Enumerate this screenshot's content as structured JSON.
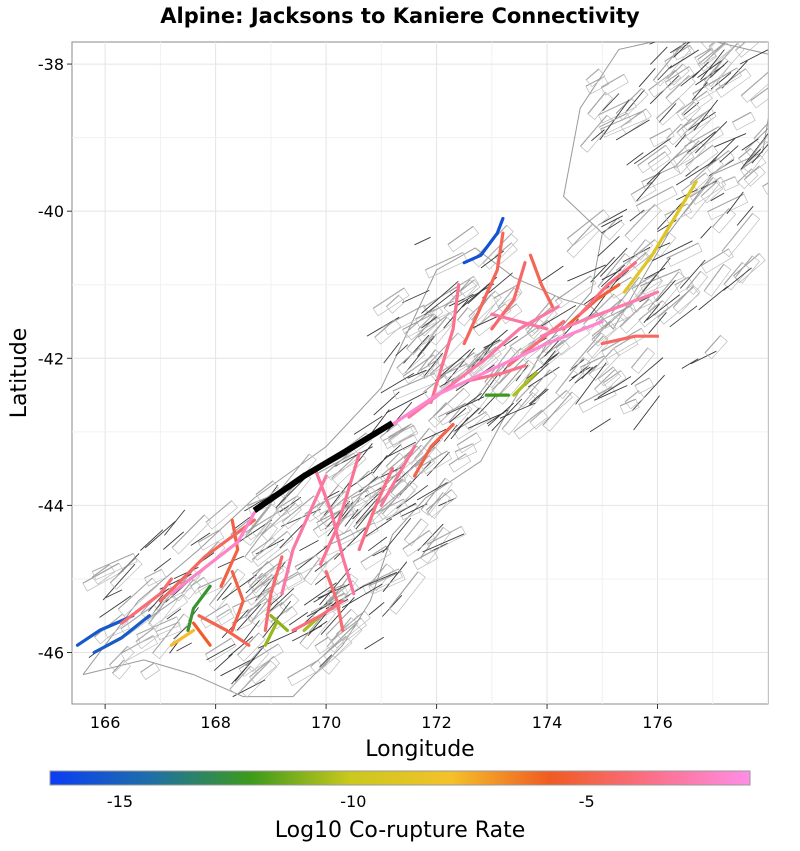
{
  "chart_data": {
    "type": "map",
    "title": "Alpine: Jacksons to Kaniere Connectivity",
    "xlabel": "Longitude",
    "ylabel": "Latitude",
    "xlim": [
      165.4,
      178.0
    ],
    "ylim": [
      -46.7,
      -37.7
    ],
    "xticks": [
      166,
      168,
      170,
      172,
      174,
      176
    ],
    "yticks": [
      -38,
      -40,
      -42,
      -44,
      -46
    ],
    "grid": true,
    "colorbar": {
      "label": "Log10 Co-rupture Rate",
      "range": [
        -16.5,
        -1.5
      ],
      "ticks": [
        -15,
        -10,
        -5
      ],
      "colors": [
        "#0b3df5",
        "#1f6fa8",
        "#3c9a1c",
        "#c9c81d",
        "#f5c12a",
        "#ef5b22",
        "#fb6f88",
        "#ff8ee6"
      ]
    },
    "source_section": {
      "name": "Alpine: Jacksons to Kaniere",
      "color": "#000000",
      "path": [
        [
          168.7,
          -44.07
        ],
        [
          169.6,
          -43.6
        ],
        [
          170.5,
          -43.2
        ],
        [
          171.2,
          -42.88
        ]
      ]
    },
    "ruptured_sections": [
      {
        "rate": -2.2,
        "path": [
          [
            167.2,
            -45.2
          ],
          [
            167.8,
            -44.85
          ],
          [
            168.4,
            -44.5
          ],
          [
            168.7,
            -44.1
          ]
        ]
      },
      {
        "rate": -2.0,
        "path": [
          [
            171.2,
            -42.9
          ],
          [
            172.0,
            -42.5
          ],
          [
            173.0,
            -42.15
          ],
          [
            174.0,
            -41.8
          ],
          [
            175.0,
            -41.5
          ]
        ]
      },
      {
        "rate": -4.0,
        "path": [
          [
            166.3,
            -45.6
          ],
          [
            167.0,
            -45.2
          ],
          [
            167.2,
            -45.0
          ]
        ]
      },
      {
        "rate": -4.5,
        "path": [
          [
            167.0,
            -45.3
          ],
          [
            167.8,
            -44.7
          ],
          [
            168.7,
            -44.2
          ]
        ]
      },
      {
        "rate": -3.2,
        "path": [
          [
            169.8,
            -43.5
          ],
          [
            170.1,
            -44.1
          ],
          [
            170.3,
            -44.7
          ],
          [
            170.5,
            -45.2
          ]
        ]
      },
      {
        "rate": -3.0,
        "path": [
          [
            170.0,
            -43.6
          ],
          [
            169.7,
            -44.1
          ],
          [
            169.4,
            -44.6
          ],
          [
            169.2,
            -45.2
          ]
        ]
      },
      {
        "rate": -3.4,
        "path": [
          [
            170.6,
            -43.3
          ],
          [
            170.4,
            -43.8
          ],
          [
            170.2,
            -44.3
          ],
          [
            169.9,
            -44.8
          ]
        ]
      },
      {
        "rate": -4.2,
        "path": [
          [
            169.2,
            -44.7
          ],
          [
            169.0,
            -45.2
          ],
          [
            168.9,
            -45.7
          ]
        ]
      },
      {
        "rate": -5.0,
        "path": [
          [
            168.3,
            -44.9
          ],
          [
            168.5,
            -45.3
          ],
          [
            168.3,
            -45.7
          ]
        ]
      },
      {
        "rate": -4.8,
        "path": [
          [
            167.7,
            -45.5
          ],
          [
            168.2,
            -45.7
          ],
          [
            168.6,
            -45.9
          ]
        ]
      },
      {
        "rate": -3.0,
        "path": [
          [
            171.5,
            -42.8
          ],
          [
            172.2,
            -42.4
          ],
          [
            172.9,
            -42.0
          ],
          [
            173.5,
            -41.6
          ],
          [
            174.2,
            -41.3
          ]
        ]
      },
      {
        "rate": -3.5,
        "path": [
          [
            171.9,
            -42.6
          ],
          [
            172.1,
            -42.1
          ],
          [
            172.3,
            -41.6
          ],
          [
            172.4,
            -41.0
          ]
        ]
      },
      {
        "rate": -4.6,
        "path": [
          [
            172.5,
            -41.8
          ],
          [
            172.8,
            -41.3
          ],
          [
            173.1,
            -40.8
          ],
          [
            173.2,
            -40.3
          ]
        ]
      },
      {
        "rate": -4.3,
        "path": [
          [
            173.0,
            -41.6
          ],
          [
            173.4,
            -41.2
          ],
          [
            173.6,
            -40.7
          ]
        ]
      },
      {
        "rate": -4.0,
        "path": [
          [
            173.3,
            -42.1
          ],
          [
            173.8,
            -41.8
          ],
          [
            174.3,
            -41.5
          ]
        ]
      },
      {
        "rate": -2.8,
        "path": [
          [
            173.9,
            -41.7
          ],
          [
            174.6,
            -41.5
          ],
          [
            175.3,
            -41.3
          ],
          [
            176.0,
            -41.1
          ]
        ]
      },
      {
        "rate": -3.8,
        "path": [
          [
            174.6,
            -41.4
          ],
          [
            175.1,
            -41.0
          ],
          [
            175.6,
            -40.7
          ]
        ]
      },
      {
        "rate": -4.4,
        "path": [
          [
            175.0,
            -41.8
          ],
          [
            175.6,
            -41.7
          ],
          [
            176.0,
            -41.7
          ]
        ]
      },
      {
        "rate": -4.9,
        "path": [
          [
            171.6,
            -43.6
          ],
          [
            171.9,
            -43.2
          ],
          [
            172.3,
            -42.9
          ]
        ]
      },
      {
        "rate": -3.6,
        "path": [
          [
            172.6,
            -42.3
          ],
          [
            173.2,
            -42.2
          ],
          [
            173.6,
            -42.1
          ]
        ]
      },
      {
        "rate": -9.0,
        "path": [
          [
            175.4,
            -41.1
          ],
          [
            175.9,
            -40.6
          ],
          [
            176.3,
            -40.1
          ],
          [
            176.7,
            -39.6
          ]
        ]
      },
      {
        "rate": -10.5,
        "path": [
          [
            173.4,
            -42.5
          ],
          [
            173.8,
            -42.2
          ]
        ]
      },
      {
        "rate": -12.5,
        "path": [
          [
            167.9,
            -45.1
          ],
          [
            167.6,
            -45.4
          ],
          [
            167.5,
            -45.7
          ]
        ]
      },
      {
        "rate": -12.2,
        "path": [
          [
            172.9,
            -42.5
          ],
          [
            173.3,
            -42.5
          ]
        ]
      },
      {
        "rate": -15.3,
        "path": [
          [
            165.5,
            -45.9
          ],
          [
            165.9,
            -45.7
          ],
          [
            166.5,
            -45.5
          ]
        ]
      },
      {
        "rate": -15.2,
        "path": [
          [
            165.8,
            -46.0
          ],
          [
            166.3,
            -45.8
          ],
          [
            166.8,
            -45.5
          ]
        ]
      },
      {
        "rate": -15.6,
        "path": [
          [
            172.5,
            -40.7
          ],
          [
            172.8,
            -40.6
          ],
          [
            173.1,
            -40.3
          ],
          [
            173.2,
            -40.1
          ]
        ]
      },
      {
        "rate": -10.8,
        "path": [
          [
            168.9,
            -45.9
          ],
          [
            169.1,
            -45.6
          ]
        ]
      },
      {
        "rate": -10.6,
        "path": [
          [
            169.6,
            -45.7
          ],
          [
            169.9,
            -45.5
          ]
        ]
      },
      {
        "rate": -11.0,
        "path": [
          [
            169.0,
            -45.5
          ],
          [
            169.3,
            -45.7
          ]
        ]
      },
      {
        "rate": -7.8,
        "path": [
          [
            167.2,
            -45.9
          ],
          [
            167.6,
            -45.7
          ]
        ]
      },
      {
        "rate": -5.6,
        "path": [
          [
            167.6,
            -45.6
          ],
          [
            167.9,
            -45.9
          ]
        ]
      },
      {
        "rate": -4.1,
        "path": [
          [
            170.0,
            -44.9
          ],
          [
            170.2,
            -45.3
          ],
          [
            170.3,
            -45.7
          ]
        ]
      },
      {
        "rate": -3.9,
        "path": [
          [
            170.3,
            -45.3
          ],
          [
            169.9,
            -45.5
          ],
          [
            169.4,
            -45.7
          ]
        ]
      },
      {
        "rate": -3.7,
        "path": [
          [
            171.2,
            -43.5
          ],
          [
            170.9,
            -44.0
          ],
          [
            170.6,
            -44.6
          ]
        ]
      },
      {
        "rate": -4.7,
        "path": [
          [
            173.7,
            -40.6
          ],
          [
            173.9,
            -41.0
          ],
          [
            174.1,
            -41.3
          ]
        ]
      },
      {
        "rate": -5.1,
        "path": [
          [
            168.3,
            -44.2
          ],
          [
            168.4,
            -44.6
          ],
          [
            168.1,
            -45.1
          ]
        ]
      },
      {
        "rate": -3.3,
        "path": [
          [
            171.6,
            -43.2
          ],
          [
            171.3,
            -43.6
          ],
          [
            171.0,
            -44.0
          ]
        ]
      },
      {
        "rate": -3.1,
        "path": [
          [
            173.0,
            -41.4
          ],
          [
            173.5,
            -41.5
          ],
          [
            174.0,
            -41.6
          ]
        ]
      },
      {
        "rate": -5.4,
        "path": [
          [
            174.3,
            -41.6
          ],
          [
            174.9,
            -41.2
          ],
          [
            175.3,
            -41.0
          ]
        ]
      }
    ]
  }
}
